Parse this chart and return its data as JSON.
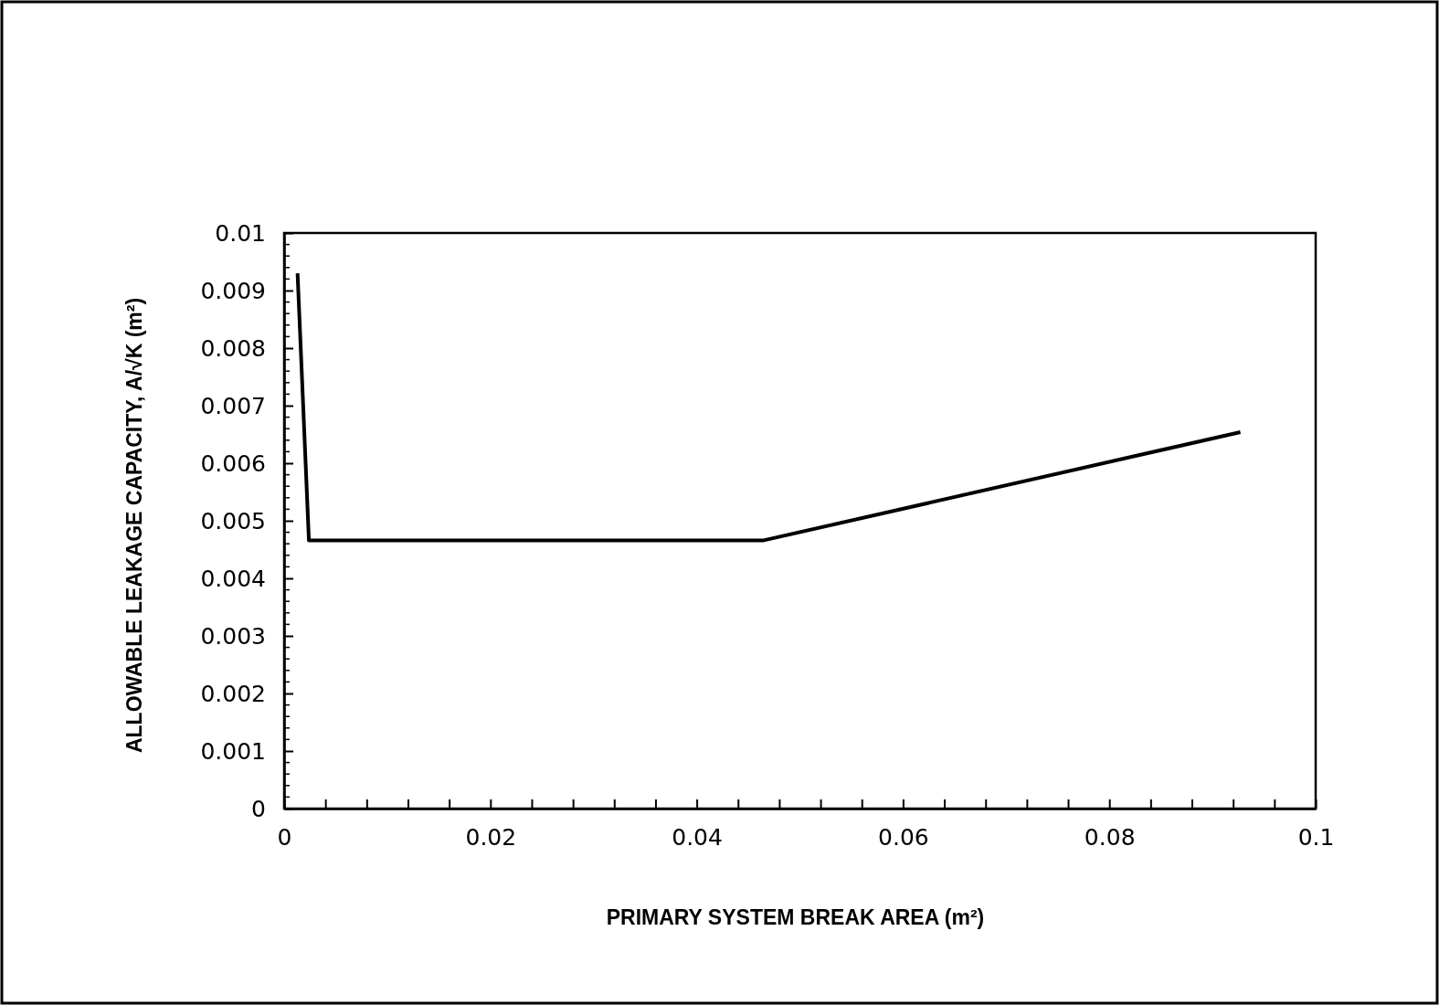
{
  "chart_data": {
    "type": "line",
    "xlabel": "PRIMARY SYSTEM BREAK AREA (m²)",
    "ylabel": "ALLOWABLE LEAKAGE CAPACITY, A/√K (m²)",
    "x": [
      0.0013,
      0.0024,
      0.0465,
      0.0927
    ],
    "series": [
      {
        "color": "#000000",
        "values": [
          0.0093,
          0.00466,
          0.00466,
          0.00654
        ]
      }
    ],
    "xlim": [
      0,
      0.1
    ],
    "ylim": [
      0,
      0.01
    ],
    "xticks": [
      0,
      {
        "value": 0.004,
        "label": null
      },
      {
        "value": 0.008,
        "label": null
      },
      {
        "value": 0.012,
        "label": null
      },
      {
        "value": 0.016,
        "label": null
      },
      0.02,
      {
        "value": 0.024,
        "label": null
      },
      {
        "value": 0.028,
        "label": null
      },
      {
        "value": 0.032,
        "label": null
      },
      {
        "value": 0.036,
        "label": null
      },
      0.04,
      {
        "value": 0.044,
        "label": null
      },
      {
        "value": 0.048,
        "label": null
      },
      {
        "value": 0.052,
        "label": null
      },
      {
        "value": 0.056,
        "label": null
      },
      0.06,
      {
        "value": 0.064,
        "label": null
      },
      {
        "value": 0.068,
        "label": null
      },
      {
        "value": 0.072,
        "label": null
      },
      {
        "value": 0.076,
        "label": null
      },
      0.08,
      {
        "value": 0.084,
        "label": null
      },
      {
        "value": 0.088,
        "label": null
      },
      {
        "value": 0.092,
        "label": null
      },
      {
        "value": 0.096,
        "label": null
      },
      0.1
    ],
    "yticks": [
      0,
      0.001,
      0.002,
      0.003,
      0.004,
      0.005,
      0.006,
      0.007,
      0.008,
      0.009,
      0.01
    ],
    "grid": false,
    "marker": "none",
    "line_style": "solid"
  }
}
